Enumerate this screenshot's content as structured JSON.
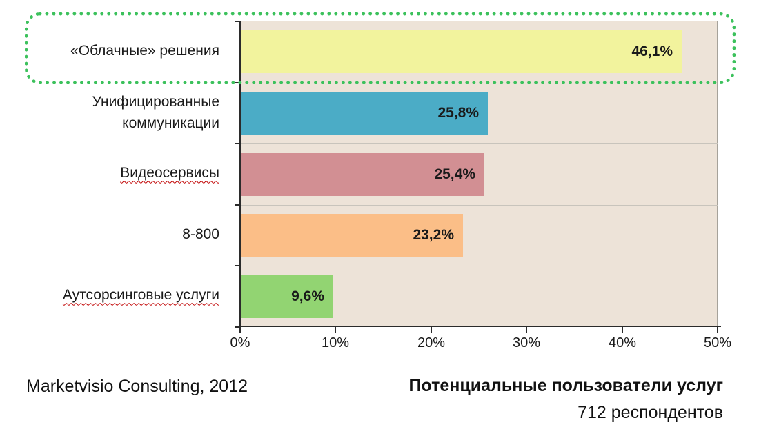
{
  "chart_data": {
    "type": "bar",
    "orientation": "horizontal",
    "categories": [
      "«Облачные» решения",
      "Унифицированные коммуникации",
      "Видеосервисы",
      "8-800",
      "Аутсорсинговые услуги"
    ],
    "values": [
      46.1,
      25.8,
      25.4,
      23.2,
      9.6
    ],
    "value_labels": [
      "46,1%",
      "25,8%",
      "25,4%",
      "23,2%",
      "9,6%"
    ],
    "bar_colors": [
      "#F2F39D",
      "#4BACC6",
      "#D28F93",
      "#FBBE87",
      "#92D472"
    ],
    "x_ticks": [
      "0%",
      "10%",
      "20%",
      "30%",
      "40%",
      "50%"
    ],
    "xlim": [
      0,
      50
    ],
    "grid": "vertical major gridlines every 10%, horizontal category separators",
    "legend": null,
    "plot_background": "#EDE3D8",
    "gridline_color": "#A6A29A",
    "separator_color": "#C8C4BC",
    "axis_color": "#2B2B2B",
    "value_label_position": "inside-end",
    "highlighted_category_index": 0,
    "highlight_outline_color": "#3CC15C",
    "spellcheck_underline": [
      false,
      false,
      true,
      false,
      true
    ]
  },
  "footer": {
    "source": "Marketvisio Consulting, 2012",
    "note_title": "Потенциальные пользователи услуг",
    "note_subtitle": "712 респондентов"
  }
}
